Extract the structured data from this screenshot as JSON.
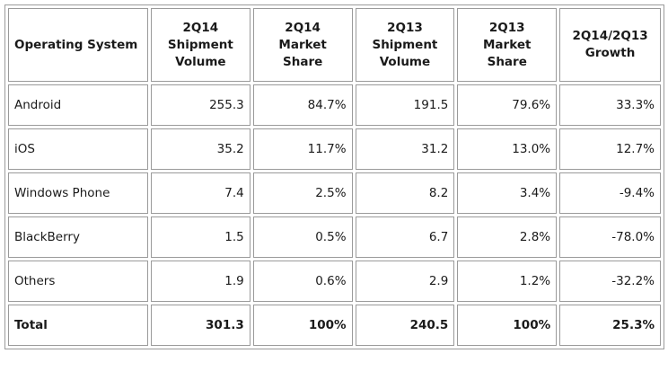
{
  "headers": [
    "Operating System",
    "2Q14 Shipment Volume",
    "2Q14 Market Share",
    "2Q13 Shipment Volume",
    "2Q13 Market Share",
    "2Q14/2Q13 Growth"
  ],
  "headers_lines": [
    [
      "Operating System"
    ],
    [
      "2Q14",
      "Shipment",
      "Volume"
    ],
    [
      "2Q14 Market",
      "Share"
    ],
    [
      "2Q13",
      "Shipment",
      "Volume"
    ],
    [
      "2Q13 Market",
      "Share"
    ],
    [
      "2Q14/2Q13",
      "Growth"
    ]
  ],
  "rows": [
    {
      "os": "Android",
      "v14": "255.3",
      "s14": "84.7%",
      "v13": "191.5",
      "s13": "79.6%",
      "growth": "33.3%"
    },
    {
      "os": "iOS",
      "v14": "35.2",
      "s14": "11.7%",
      "v13": "31.2",
      "s13": "13.0%",
      "growth": "12.7%"
    },
    {
      "os": "Windows Phone",
      "v14": "7.4",
      "s14": "2.5%",
      "v13": "8.2",
      "s13": "3.4%",
      "growth": "-9.4%"
    },
    {
      "os": "BlackBerry",
      "v14": "1.5",
      "s14": "0.5%",
      "v13": "6.7",
      "s13": "2.8%",
      "growth": "-78.0%"
    },
    {
      "os": "Others",
      "v14": "1.9",
      "s14": "0.6%",
      "v13": "2.9",
      "s13": "1.2%",
      "growth": "-32.2%"
    }
  ],
  "total": {
    "os": "Total",
    "v14": "301.3",
    "s14": "100%",
    "v13": "240.5",
    "s13": "100%",
    "growth": "25.3%"
  }
}
